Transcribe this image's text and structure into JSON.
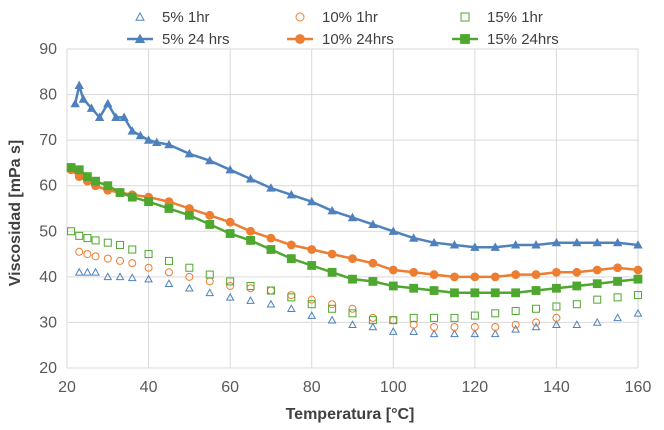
{
  "chart_data": {
    "type": "scatter",
    "xlabel": "Temperatura  [°C]",
    "ylabel": "Viscosidad  [mPa s]",
    "xlim": [
      20,
      160
    ],
    "ylim": [
      20,
      90
    ],
    "xticks": [
      20,
      40,
      60,
      80,
      100,
      120,
      140,
      160
    ],
    "yticks": [
      20,
      30,
      40,
      50,
      60,
      70,
      80,
      90
    ],
    "grid": "vertical and horizontal",
    "legend_position": "top",
    "series": [
      {
        "name": "5% 1hr",
        "color": "#4f81bd",
        "marker": "triangle-open",
        "line": false,
        "x": [
          23,
          25,
          27,
          30,
          33,
          36,
          40,
          45,
          50,
          55,
          60,
          65,
          70,
          75,
          80,
          85,
          90,
          95,
          100,
          105,
          110,
          115,
          120,
          125,
          130,
          135,
          140,
          145,
          150,
          155,
          160
        ],
        "y": [
          41,
          41,
          41,
          40,
          40,
          39.8,
          39.5,
          38.5,
          37.5,
          36.5,
          35.5,
          34.8,
          34,
          33,
          31.5,
          30.5,
          29.5,
          29,
          28,
          28,
          27.5,
          27.5,
          27.5,
          27.5,
          28.5,
          29,
          29.5,
          29.5,
          30,
          31,
          32
        ]
      },
      {
        "name": "10% 1hr",
        "color": "#ed7d31",
        "marker": "circle-open",
        "line": false,
        "x": [
          23,
          25,
          27,
          30,
          33,
          36,
          40,
          45,
          50,
          55,
          60,
          65,
          70,
          75,
          80,
          85,
          90,
          95,
          100,
          105,
          110,
          115,
          120,
          125,
          130,
          135,
          140
        ],
        "y": [
          45.5,
          45,
          44.5,
          44,
          43.5,
          43,
          42,
          41,
          40,
          39,
          38,
          37.5,
          37,
          36,
          35,
          34,
          33,
          31,
          30.5,
          29.5,
          29,
          29,
          29,
          29,
          29.5,
          30,
          31
        ]
      },
      {
        "name": "15% 1hr",
        "color": "#4ea72e",
        "marker": "square-open",
        "line": false,
        "x": [
          21,
          23,
          25,
          27,
          30,
          33,
          36,
          40,
          45,
          50,
          55,
          60,
          65,
          70,
          75,
          80,
          85,
          90,
          95,
          100,
          105,
          110,
          115,
          120,
          125,
          130,
          135,
          140,
          145,
          150,
          155,
          160
        ],
        "y": [
          50,
          49,
          48.5,
          48,
          47.5,
          47,
          46,
          45,
          43.5,
          42,
          40.5,
          39,
          38,
          37,
          35.5,
          34,
          33,
          32,
          30.5,
          30.5,
          31,
          31,
          31,
          31.5,
          32,
          32.5,
          33,
          33.5,
          34,
          35,
          35.5,
          36
        ]
      },
      {
        "name": "5% 24 hrs",
        "color": "#4f81bd",
        "marker": "triangle-filled",
        "line": true,
        "x": [
          22,
          23,
          24,
          26,
          28,
          30,
          32,
          34,
          36,
          38,
          40,
          42,
          45,
          50,
          55,
          60,
          65,
          70,
          75,
          80,
          85,
          90,
          95,
          100,
          105,
          110,
          115,
          120,
          125,
          130,
          135,
          140,
          145,
          150,
          155,
          160
        ],
        "y": [
          78,
          82,
          79,
          77,
          75,
          78,
          75,
          75,
          72,
          71,
          70,
          69.5,
          69,
          67,
          65.5,
          63.5,
          61.5,
          59.5,
          58,
          56.5,
          54.5,
          53,
          51.5,
          50,
          48.5,
          47.5,
          47,
          46.5,
          46.5,
          47,
          47,
          47.5,
          47.5,
          47.5,
          47.5,
          47
        ]
      },
      {
        "name": "10% 24hrs",
        "color": "#ed7d31",
        "marker": "circle-filled",
        "line": true,
        "x": [
          21,
          23,
          25,
          27,
          30,
          33,
          36,
          40,
          45,
          50,
          55,
          60,
          65,
          70,
          75,
          80,
          85,
          90,
          95,
          100,
          105,
          110,
          115,
          120,
          125,
          130,
          135,
          140,
          145,
          150,
          155,
          160
        ],
        "y": [
          63.5,
          62,
          61,
          60,
          59,
          58.5,
          58,
          57.5,
          56.5,
          55,
          53.5,
          52,
          50,
          48.5,
          47,
          46,
          45,
          44,
          43,
          41.5,
          41,
          40.5,
          40,
          40,
          40,
          40.5,
          40.5,
          41,
          41,
          41.5,
          42,
          41.5
        ]
      },
      {
        "name": "15% 24hrs",
        "color": "#4ea72e",
        "marker": "square-filled",
        "line": true,
        "x": [
          21,
          23,
          25,
          27,
          30,
          33,
          36,
          40,
          45,
          50,
          55,
          60,
          65,
          70,
          75,
          80,
          85,
          90,
          95,
          100,
          105,
          110,
          115,
          120,
          125,
          130,
          135,
          140,
          145,
          150,
          155,
          160
        ],
        "y": [
          64,
          63.5,
          62,
          61,
          60,
          58.5,
          57.5,
          56.5,
          55,
          53.5,
          51.5,
          49.5,
          48,
          46,
          44,
          42.5,
          41,
          39.5,
          39,
          38,
          37.5,
          37,
          36.5,
          36.5,
          36.5,
          36.5,
          37,
          37.5,
          38,
          38.5,
          39,
          39.5
        ]
      }
    ]
  }
}
